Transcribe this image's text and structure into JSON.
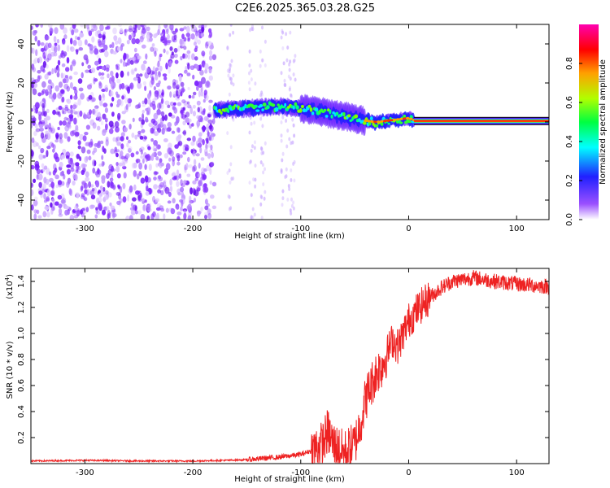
{
  "title": "C2E6.2025.365.03.28.G25",
  "chart_data": [
    {
      "type": "heatmap",
      "xlabel": "Height of straight line (km)",
      "ylabel": "Frequency (Hz)",
      "xlim": [
        -350,
        130
      ],
      "ylim": [
        -50,
        50
      ],
      "xticks": [
        -300,
        -200,
        -100,
        0,
        100
      ],
      "yticks": [
        -40,
        -20,
        0,
        20,
        40
      ],
      "colorbar": {
        "label": "Normalized spectral amplitude",
        "range": [
          0,
          1
        ],
        "ticks": [
          "0.0",
          "0.2",
          "0.4",
          "0.6",
          "0.8"
        ],
        "colors": [
          "#ffffff",
          "#7a1fff",
          "#1f1fff",
          "#00ffff",
          "#00ff40",
          "#b0ff00",
          "#ffa000",
          "#ff0000",
          "#ff00b0"
        ]
      },
      "regions": [
        {
          "name": "noise",
          "x_range": [
            -350,
            -180
          ],
          "freq_range": [
            -50,
            50
          ],
          "amplitude": 0.1
        },
        {
          "name": "ridge",
          "x": [
            -180,
            -150,
            -120,
            -100,
            -80,
            -60,
            -45,
            -30,
            -15,
            0,
            5
          ],
          "freq": [
            6,
            7,
            8,
            7,
            5,
            3,
            1,
            0,
            1,
            2,
            1
          ],
          "amplitude": 0.5
        },
        {
          "name": "steady",
          "x_range": [
            5,
            130
          ],
          "freq": 0.5,
          "amplitude": 0.9
        }
      ]
    },
    {
      "type": "line",
      "xlabel": "Height of straight line (km)",
      "ylabel": "SNR (10 * v/v)",
      "y_scale_label": "(x10",
      "y_scale_exp": "4",
      "xlim": [
        -350,
        130
      ],
      "ylim": [
        0,
        1.5
      ],
      "xticks": [
        -300,
        -200,
        -100,
        0,
        100
      ],
      "yticks": [
        "0.2",
        "0.4",
        "0.6",
        "0.8",
        "1.0",
        "1.2",
        "1.4"
      ],
      "series": [
        {
          "color": "#ee2222",
          "x": [
            -350,
            -300,
            -250,
            -200,
            -170,
            -150,
            -120,
            -100,
            -90,
            -80,
            -75,
            -70,
            -60,
            -50,
            -45,
            -40,
            -35,
            -30,
            -25,
            -20,
            -15,
            -10,
            -5,
            0,
            10,
            20,
            30,
            40,
            60,
            80,
            100,
            130
          ],
          "y": [
            0.02,
            0.025,
            0.02,
            0.02,
            0.025,
            0.03,
            0.05,
            0.07,
            0.1,
            0.15,
            0.25,
            0.15,
            0.08,
            0.15,
            0.3,
            0.5,
            0.6,
            0.7,
            0.75,
            0.85,
            0.95,
            0.9,
            1.0,
            1.1,
            1.2,
            1.28,
            1.35,
            1.4,
            1.43,
            1.4,
            1.38,
            1.36
          ]
        }
      ]
    }
  ]
}
